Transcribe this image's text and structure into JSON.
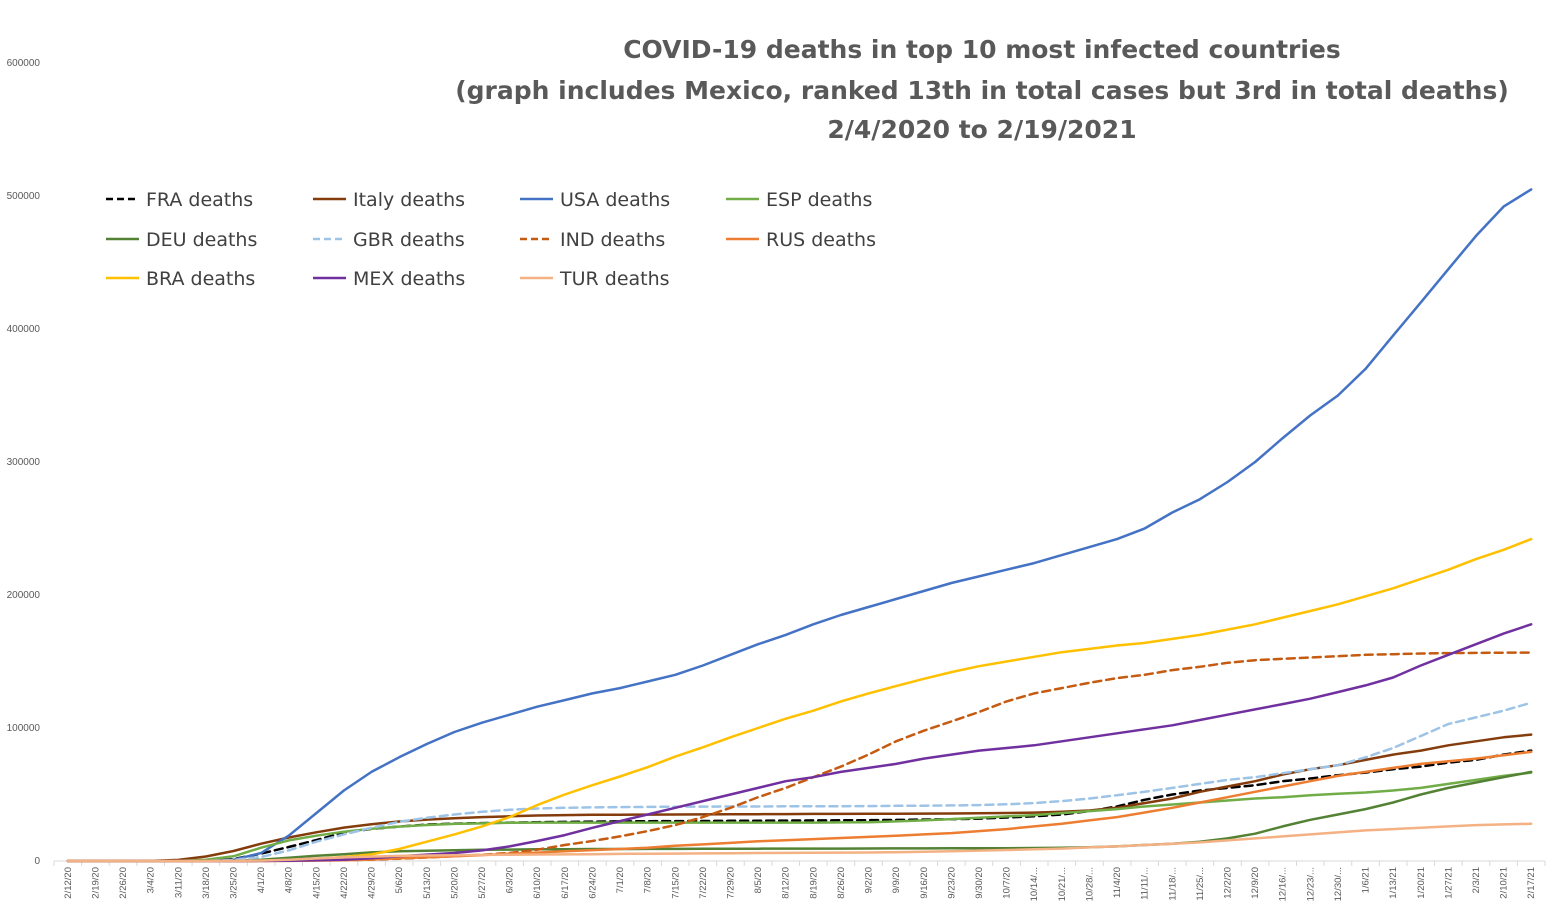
{
  "chart_data": {
    "type": "line",
    "title_lines": [
      "COVID-19 deaths in top 10 most infected countries",
      "(graph includes Mexico, ranked 13th in total cases but 3rd in total deaths)",
      "2/4/2020 to 2/19/2021"
    ],
    "xlabel": "",
    "ylabel": "",
    "ylim": [
      0,
      600000
    ],
    "yticks": [
      0,
      100000,
      200000,
      300000,
      400000,
      500000,
      600000
    ],
    "ytick_labels": [
      "0",
      "100000",
      "200000",
      "300000",
      "400000",
      "500000",
      "600000"
    ],
    "x_tick_labels": [
      "2/12/20",
      "2/19/20",
      "2/26/20",
      "3/4/20",
      "3/11/20",
      "3/18/20",
      "3/25/20",
      "4/1/20",
      "4/8/20",
      "4/15/20",
      "4/22/20",
      "4/29/20",
      "5/6/20",
      "5/13/20",
      "5/20/20",
      "5/27/20",
      "6/3/20",
      "6/10/20",
      "6/17/20",
      "6/24/20",
      "7/1/20",
      "7/8/20",
      "7/15/20",
      "7/22/20",
      "7/29/20",
      "8/5/20",
      "8/12/20",
      "8/19/20",
      "8/26/20",
      "9/2/20",
      "9/9/20",
      "9/16/20",
      "9/23/20",
      "9/30/20",
      "10/7/20",
      "10/14/...",
      "10/21/...",
      "10/28/...",
      "11/4/20",
      "11/11/...",
      "11/18/...",
      "11/25/...",
      "12/2/20",
      "12/9/20",
      "12/16/...",
      "12/23/...",
      "12/30/...",
      "1/6/21",
      "1/13/21",
      "1/20/21",
      "1/27/21",
      "2/3/21",
      "2/10/21",
      "2/17/21"
    ],
    "grid": false,
    "legend_position": "top-left",
    "series": [
      {
        "name": "FRA deaths",
        "color": "#000000",
        "dash": "dashed",
        "values": [
          0,
          0,
          0,
          0,
          0,
          250,
          1400,
          5600,
          10500,
          15700,
          21300,
          24100,
          25900,
          27400,
          28100,
          28500,
          28900,
          29200,
          29400,
          29600,
          29800,
          29900,
          30000,
          30100,
          30200,
          30300,
          30400,
          30500,
          30600,
          30700,
          30900,
          31100,
          31400,
          31900,
          32700,
          33600,
          35000,
          37500,
          41000,
          46000,
          50000,
          53000,
          55000,
          57000,
          60000,
          62000,
          64500,
          66500,
          69000,
          71000,
          74000,
          76000,
          80000,
          83000
        ]
      },
      {
        "name": "Italy deaths",
        "color": "#843c0c",
        "dash": "solid",
        "values": [
          0,
          0,
          0,
          100,
          800,
          3400,
          7500,
          13000,
          17700,
          21600,
          25100,
          27700,
          29700,
          31100,
          32200,
          33000,
          33600,
          34200,
          34500,
          34700,
          34800,
          34900,
          35000,
          35050,
          35100,
          35200,
          35250,
          35400,
          35450,
          35500,
          35550,
          35650,
          35750,
          35900,
          36100,
          36400,
          37000,
          38000,
          40000,
          43500,
          47000,
          52000,
          56000,
          60000,
          65000,
          69000,
          72000,
          76000,
          80000,
          83000,
          87000,
          90000,
          93000,
          95000
        ]
      },
      {
        "name": "USA deaths",
        "color": "#4472c4",
        "dash": "solid",
        "values": [
          0,
          0,
          0,
          10,
          30,
          150,
          900,
          6000,
          19000,
          36000,
          53000,
          67000,
          78000,
          88000,
          97000,
          104000,
          110000,
          116000,
          121000,
          126000,
          130000,
          135000,
          140000,
          147000,
          155000,
          163000,
          170000,
          178000,
          185000,
          191000,
          197000,
          203000,
          209000,
          214000,
          219000,
          224000,
          230000,
          236000,
          242000,
          250000,
          262000,
          272000,
          285000,
          300000,
          318000,
          335000,
          350000,
          370000,
          395000,
          420000,
          445000,
          470000,
          492000,
          505000
        ]
      },
      {
        "name": "ESP deaths",
        "color": "#70ad47",
        "dash": "solid",
        "values": [
          0,
          0,
          0,
          0,
          100,
          1000,
          3500,
          10000,
          15500,
          19000,
          22000,
          24300,
          25900,
          27100,
          27900,
          28300,
          28800,
          28900,
          28900,
          28900,
          28900,
          28900,
          28900,
          28900,
          28900,
          28900,
          28900,
          28900,
          29000,
          29200,
          29800,
          30500,
          31500,
          32500,
          33500,
          34500,
          36000,
          37500,
          39000,
          41000,
          42500,
          44000,
          45500,
          47000,
          48000,
          49500,
          50500,
          51500,
          53000,
          55000,
          58000,
          61000,
          64000,
          66500
        ]
      },
      {
        "name": "DEU deaths",
        "color": "#548235",
        "dash": "solid",
        "values": [
          0,
          0,
          0,
          0,
          0,
          50,
          250,
          1000,
          2400,
          3900,
          5100,
          6500,
          7300,
          7700,
          8100,
          8400,
          8600,
          8800,
          8900,
          9000,
          9000,
          9100,
          9100,
          9150,
          9200,
          9250,
          9300,
          9300,
          9350,
          9400,
          9450,
          9500,
          9550,
          9600,
          9650,
          9750,
          9900,
          10300,
          11000,
          12000,
          13000,
          14500,
          17000,
          20500,
          26000,
          31000,
          35000,
          39000,
          44000,
          50000,
          55000,
          59000,
          63000,
          67000
        ]
      },
      {
        "name": "GBR deaths",
        "color": "#9dc3e6",
        "dash": "dashed",
        "values": [
          0,
          0,
          0,
          0,
          10,
          150,
          800,
          3000,
          8000,
          14500,
          20000,
          25000,
          29500,
          32500,
          35000,
          37000,
          38500,
          39500,
          40000,
          40300,
          40500,
          40700,
          40800,
          40900,
          41000,
          41000,
          41100,
          41200,
          41200,
          41300,
          41500,
          41600,
          41800,
          42000,
          42600,
          43500,
          45000,
          47000,
          49500,
          52000,
          55000,
          58000,
          61000,
          63000,
          66000,
          69000,
          72000,
          78000,
          85000,
          94000,
          103000,
          108000,
          113000,
          119000
        ]
      },
      {
        "name": "IND deaths",
        "color": "#c55a11",
        "dash": "dashed",
        "values": [
          0,
          0,
          0,
          0,
          0,
          0,
          10,
          40,
          200,
          500,
          700,
          1000,
          1700,
          2600,
          3600,
          4700,
          6000,
          8500,
          12000,
          15000,
          18500,
          22500,
          27000,
          33000,
          40000,
          48000,
          55000,
          63000,
          71000,
          80000,
          90000,
          98000,
          105000,
          112000,
          120000,
          126000,
          130000,
          134000,
          137500,
          140000,
          143500,
          146000,
          149000,
          151000,
          152000,
          153000,
          154000,
          155000,
          155500,
          156000,
          156300,
          156500,
          156600,
          156700
        ]
      },
      {
        "name": "RUS deaths",
        "color": "#ed7d31",
        "dash": "solid",
        "values": [
          0,
          0,
          0,
          0,
          0,
          0,
          0,
          20,
          100,
          300,
          600,
          1100,
          2000,
          2800,
          3500,
          4400,
          5500,
          6300,
          7300,
          8200,
          9000,
          10000,
          11500,
          12500,
          13600,
          14800,
          15600,
          16500,
          17300,
          18100,
          19000,
          20000,
          21000,
          22500,
          24000,
          26000,
          28000,
          30500,
          33000,
          36500,
          40000,
          44000,
          48000,
          52000,
          56000,
          60000,
          64000,
          67000,
          70000,
          73000,
          75000,
          77000,
          79500,
          82000
        ]
      },
      {
        "name": "BRA deaths",
        "color": "#ffc000",
        "dash": "solid",
        "values": [
          0,
          0,
          0,
          0,
          0,
          0,
          50,
          200,
          800,
          1700,
          3000,
          5000,
          9000,
          14500,
          20000,
          26000,
          33000,
          42000,
          50000,
          57000,
          63500,
          70500,
          78500,
          85500,
          93000,
          100000,
          107000,
          113000,
          120000,
          126000,
          131500,
          137000,
          142000,
          146500,
          150000,
          153500,
          157000,
          159500,
          162000,
          164000,
          167000,
          170000,
          174000,
          178000,
          183000,
          188000,
          193000,
          199000,
          205000,
          212000,
          219000,
          227000,
          234000,
          242000
        ]
      },
      {
        "name": "MEX deaths",
        "color": "#7030a0",
        "dash": "solid",
        "values": [
          0,
          0,
          0,
          0,
          0,
          0,
          0,
          50,
          200,
          500,
          1000,
          2000,
          3500,
          4800,
          6000,
          8000,
          11000,
          15000,
          19500,
          25000,
          30000,
          35000,
          40000,
          45000,
          50000,
          55000,
          60000,
          63000,
          67000,
          70000,
          73000,
          77000,
          80000,
          83000,
          85000,
          87000,
          90000,
          93000,
          96000,
          99000,
          102000,
          106000,
          110000,
          114000,
          118000,
          122000,
          127000,
          132000,
          138000,
          147000,
          155000,
          163000,
          171000,
          178000
        ]
      },
      {
        "name": "TUR deaths",
        "color": "#f4b183",
        "dash": "solid",
        "values": [
          0,
          0,
          0,
          0,
          0,
          0,
          50,
          300,
          1000,
          1900,
          2700,
          3300,
          3800,
          4100,
          4300,
          4600,
          4700,
          4850,
          5000,
          5150,
          5350,
          5500,
          5600,
          5750,
          5850,
          6000,
          6100,
          6200,
          6300,
          6400,
          6600,
          6900,
          7300,
          7800,
          8300,
          8800,
          9300,
          10200,
          11000,
          12000,
          13000,
          14000,
          15500,
          17000,
          18500,
          20000,
          21500,
          23000,
          24000,
          25000,
          26000,
          27000,
          27500,
          28000
        ]
      }
    ]
  }
}
